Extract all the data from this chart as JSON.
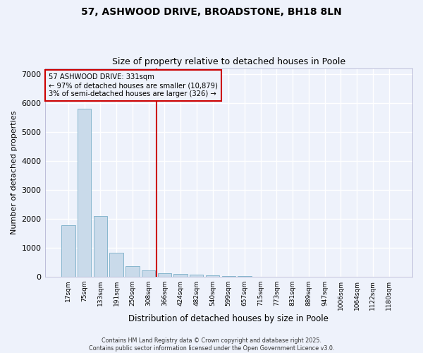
{
  "title_line1": "57, ASHWOOD DRIVE, BROADSTONE, BH18 8LN",
  "title_line2": "Size of property relative to detached houses in Poole",
  "xlabel": "Distribution of detached houses by size in Poole",
  "ylabel": "Number of detached properties",
  "categories": [
    "17sqm",
    "75sqm",
    "133sqm",
    "191sqm",
    "250sqm",
    "308sqm",
    "366sqm",
    "424sqm",
    "482sqm",
    "540sqm",
    "599sqm",
    "657sqm",
    "715sqm",
    "773sqm",
    "831sqm",
    "889sqm",
    "947sqm",
    "1006sqm",
    "1064sqm",
    "1122sqm",
    "1180sqm"
  ],
  "values": [
    1780,
    5820,
    2100,
    820,
    370,
    215,
    130,
    95,
    75,
    50,
    25,
    12,
    6,
    3,
    1,
    1,
    0,
    0,
    0,
    0,
    0
  ],
  "bar_color": "#c9daea",
  "bar_edge_color": "#7aafc8",
  "vline_color": "#cc0000",
  "vline_x_index": 5.5,
  "annotation_line1": "57 ASHWOOD DRIVE: 331sqm",
  "annotation_line2": "← 97% of detached houses are smaller (10,879)",
  "annotation_line3": "3% of semi-detached houses are larger (326) →",
  "annotation_box_color": "#cc0000",
  "ylim": [
    0,
    7200
  ],
  "yticks": [
    0,
    1000,
    2000,
    3000,
    4000,
    5000,
    6000,
    7000
  ],
  "bg_color": "#eef2fb",
  "grid_color": "#ffffff",
  "footer_line1": "Contains HM Land Registry data © Crown copyright and database right 2025.",
  "footer_line2": "Contains public sector information licensed under the Open Government Licence v3.0."
}
